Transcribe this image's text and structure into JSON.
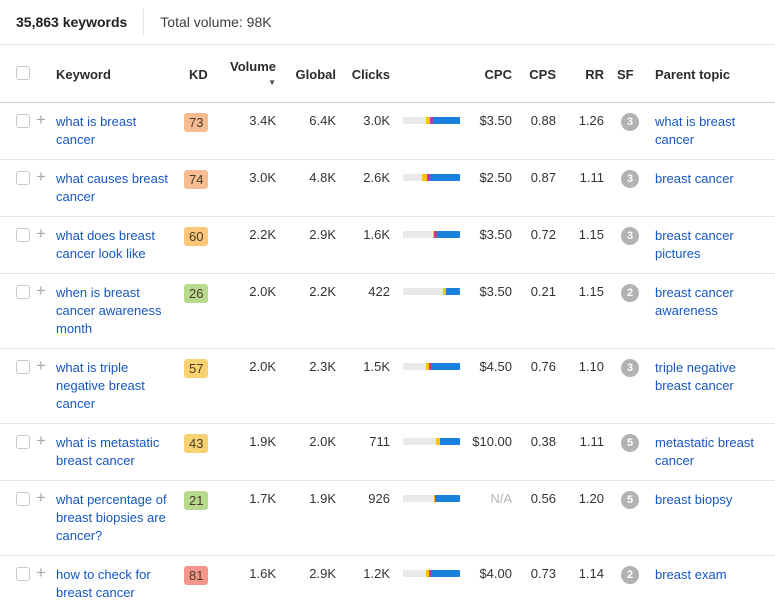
{
  "header": {
    "keywords_count": "35,863 keywords",
    "total_volume_label": "Total volume: 98K"
  },
  "table": {
    "columns": {
      "keyword": "Keyword",
      "kd": "KD",
      "volume": "Volume",
      "global": "Global",
      "clicks": "Clicks",
      "cpc": "CPC",
      "cps": "CPS",
      "rr": "RR",
      "sf": "SF",
      "parent": "Parent topic"
    },
    "sort_indicator": "▼",
    "rows": [
      {
        "keyword": "what is breast cancer",
        "kd": "73",
        "kd_color": "#f7bb92",
        "volume": "3.4K",
        "global": "6.4K",
        "clicks": "3.0K",
        "bar": {
          "gray": 0.4,
          "yellow": 0.07,
          "magenta": 0.05,
          "blue": 0.48
        },
        "cpc": "$3.50",
        "cps": "0.88",
        "rr": "1.26",
        "sf": "3",
        "parent": "what is breast cancer"
      },
      {
        "keyword": "what causes breast cancer",
        "kd": "74",
        "kd_color": "#f7bb92",
        "volume": "3.0K",
        "global": "4.8K",
        "clicks": "2.6K",
        "bar": {
          "gray": 0.34,
          "yellow": 0.08,
          "magenta": 0.05,
          "blue": 0.53
        },
        "cpc": "$2.50",
        "cps": "0.87",
        "rr": "1.11",
        "sf": "3",
        "parent": "breast cancer"
      },
      {
        "keyword": "what does breast cancer look like",
        "kd": "60",
        "kd_color": "#fbc77b",
        "volume": "2.2K",
        "global": "2.9K",
        "clicks": "1.6K",
        "bar": {
          "gray": 0.52,
          "yellow": 0.02,
          "magenta": 0.06,
          "blue": 0.4
        },
        "cpc": "$3.50",
        "cps": "0.72",
        "rr": "1.15",
        "sf": "3",
        "parent": "breast cancer pictures"
      },
      {
        "keyword": "when is breast cancer awareness month",
        "kd": "26",
        "kd_color": "#b8da8e",
        "volume": "2.0K",
        "global": "2.2K",
        "clicks": "422",
        "bar": {
          "gray": 0.7,
          "yellow": 0.06,
          "magenta": 0,
          "blue": 0.24
        },
        "cpc": "$3.50",
        "cps": "0.21",
        "rr": "1.15",
        "sf": "2",
        "parent": "breast cancer awareness"
      },
      {
        "keyword": "what is triple negative breast cancer",
        "kd": "57",
        "kd_color": "#f8d272",
        "volume": "2.0K",
        "global": "2.3K",
        "clicks": "1.5K",
        "bar": {
          "gray": 0.4,
          "yellow": 0.05,
          "magenta": 0.06,
          "blue": 0.49
        },
        "cpc": "$4.50",
        "cps": "0.76",
        "rr": "1.10",
        "sf": "3",
        "parent": "triple negative breast cancer"
      },
      {
        "keyword": "what is metastatic breast cancer",
        "kd": "43",
        "kd_color": "#f8d272",
        "volume": "1.9K",
        "global": "2.0K",
        "clicks": "711",
        "bar": {
          "gray": 0.58,
          "yellow": 0.07,
          "magenta": 0,
          "blue": 0.35
        },
        "cpc": "$10.00",
        "cps": "0.38",
        "rr": "1.11",
        "sf": "5",
        "parent": "metastatic breast cancer"
      },
      {
        "keyword": "what percentage of breast biopsies are cancer?",
        "kd": "21",
        "kd_color": "#b8da8e",
        "volume": "1.7K",
        "global": "1.9K",
        "clicks": "926",
        "bar": {
          "gray": 0.54,
          "yellow": 0.02,
          "magenta": 0,
          "blue": 0.44
        },
        "cpc": "N/A",
        "cps": "0.56",
        "rr": "1.20",
        "sf": "5",
        "parent": "breast biopsy"
      },
      {
        "keyword": "how to check for breast cancer",
        "kd": "81",
        "kd_color": "#f5968c",
        "volume": "1.6K",
        "global": "2.9K",
        "clicks": "1.2K",
        "bar": {
          "gray": 0.4,
          "yellow": 0.06,
          "magenta": 0.04,
          "blue": 0.5
        },
        "cpc": "$4.00",
        "cps": "0.73",
        "rr": "1.14",
        "sf": "2",
        "parent": "breast exam"
      }
    ]
  },
  "colors": {
    "link_blue": "#1657c0",
    "bar_gray": "#e9e9eb",
    "bar_yellow": "#fdc500",
    "bar_magenta": "#c2399f",
    "bar_blue": "#1a80dd",
    "sf_badge_gray": "#b2b2b2"
  }
}
